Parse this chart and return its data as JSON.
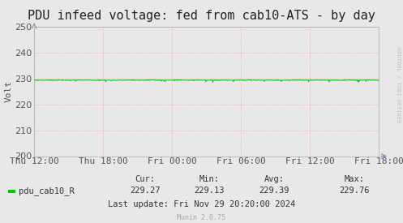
{
  "title": "PDU infeed voltage: fed from cab10-ATS - by day",
  "ylabel": "Volt",
  "background_color": "#e8e8e8",
  "plot_bg_color": "#e8e8e8",
  "ylim": [
    200,
    250
  ],
  "yticks": [
    200,
    210,
    220,
    230,
    240,
    250
  ],
  "x_labels": [
    "Thu 12:00",
    "Thu 18:00",
    "Fri 00:00",
    "Fri 06:00",
    "Fri 12:00",
    "Fri 18:00"
  ],
  "line_color": "#00cc00",
  "line_value": 229.35,
  "line_noise_std": 0.08,
  "dip_count": 15,
  "dip_magnitude": 0.8,
  "grid_color": "#ff9999",
  "grid_linestyle": ":",
  "title_fontsize": 11,
  "axis_label_fontsize": 8,
  "tick_fontsize": 8,
  "legend_label": "pdu_cab10_R",
  "legend_color": "#00cc00",
  "stats_cur": "229.27",
  "stats_min": "229.13",
  "stats_avg": "229.39",
  "stats_max": "229.76",
  "last_update": "Last update: Fri Nov 29 20:20:00 2024",
  "munin_version": "Munin 2.0.75",
  "rrdtool_text": "RRDTOOL / TOBI OETIKER",
  "footer_fontsize": 7.5,
  "munin_fontsize": 6,
  "rrdtool_fontsize": 5,
  "spine_color": "#aaaaaa",
  "text_color": "#555555",
  "rrdtool_color": "#c0c0c0",
  "arrow_color": "#8888bb"
}
